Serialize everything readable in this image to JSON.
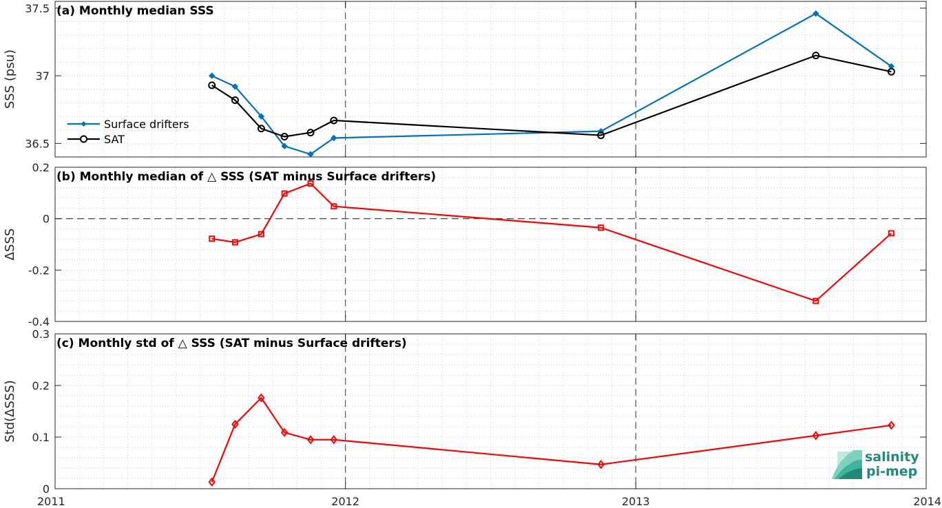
{
  "logo": {
    "line1": "salinity",
    "line2": "pi-mep"
  },
  "x_ticks": [
    "2011",
    "2012",
    "2013",
    "2014"
  ],
  "colors": {
    "drifters": "#0072bd",
    "sat": "#000000",
    "delta": "#ff0000",
    "logo": "#1f8a7a"
  },
  "chart_data": [
    {
      "type": "line",
      "title": "(a) Monthly median SSS",
      "ylabel": "SSS (psu)",
      "ylim": [
        36.4,
        37.55
      ],
      "xlim": [
        2011.0,
        2014.0
      ],
      "yticks": [
        36.5,
        37,
        37.5
      ],
      "ytick_labels": [
        "36.5",
        "37",
        "37.5"
      ],
      "grid": true,
      "legend": {
        "position": "left-middle",
        "entries": [
          "Surface drifters",
          "SAT"
        ]
      },
      "series": [
        {
          "name": "Surface drifters",
          "marker": "filled-diamond",
          "x": [
            2011.54,
            2011.62,
            2011.71,
            2011.79,
            2011.88,
            2011.96,
            2012.88,
            2013.62,
            2013.88
          ],
          "y": [
            37.0,
            36.92,
            36.7,
            36.48,
            36.42,
            36.54,
            36.59,
            37.46,
            37.07
          ]
        },
        {
          "name": "SAT",
          "marker": "circle",
          "x": [
            2011.54,
            2011.62,
            2011.71,
            2011.79,
            2011.88,
            2011.96,
            2012.88,
            2013.62,
            2013.88
          ],
          "y": [
            36.93,
            36.82,
            36.61,
            36.55,
            36.58,
            36.67,
            36.56,
            37.15,
            37.03
          ]
        }
      ]
    },
    {
      "type": "line",
      "title": "(b) Monthly median of △ SSS (SAT minus Surface drifters)",
      "ylabel": "ΔSSS",
      "ylim": [
        -0.4,
        0.2
      ],
      "xlim": [
        2011.0,
        2014.0
      ],
      "yticks": [
        -0.4,
        -0.2,
        0,
        0.2
      ],
      "ytick_labels": [
        "-0.4",
        "-0.2",
        "0",
        "0.2"
      ],
      "grid": true,
      "zero_line": true,
      "series": [
        {
          "marker": "square",
          "x": [
            2011.54,
            2011.62,
            2011.71,
            2011.79,
            2011.88,
            2011.96,
            2012.88,
            2013.62,
            2013.88
          ],
          "y": [
            -0.078,
            -0.092,
            -0.06,
            0.098,
            0.137,
            0.048,
            -0.035,
            -0.32,
            -0.057
          ]
        }
      ]
    },
    {
      "type": "line",
      "title": "(c) Monthly std of △ SSS (SAT minus Surface drifters)",
      "ylabel": "Std(ΔSSS)",
      "ylim": [
        0,
        0.3
      ],
      "xlim": [
        2011.0,
        2014.0
      ],
      "yticks": [
        0,
        0.1,
        0.2,
        0.3
      ],
      "ytick_labels": [
        "0",
        "0.1",
        "0.2",
        "0.3"
      ],
      "grid": true,
      "series": [
        {
          "marker": "diamond",
          "x": [
            2011.54,
            2011.62,
            2011.71,
            2011.79,
            2011.88,
            2011.96,
            2012.88,
            2013.62,
            2013.88
          ],
          "y": [
            0.013,
            0.125,
            0.176,
            0.109,
            0.095,
            0.095,
            0.047,
            0.103,
            0.123
          ]
        }
      ]
    }
  ]
}
